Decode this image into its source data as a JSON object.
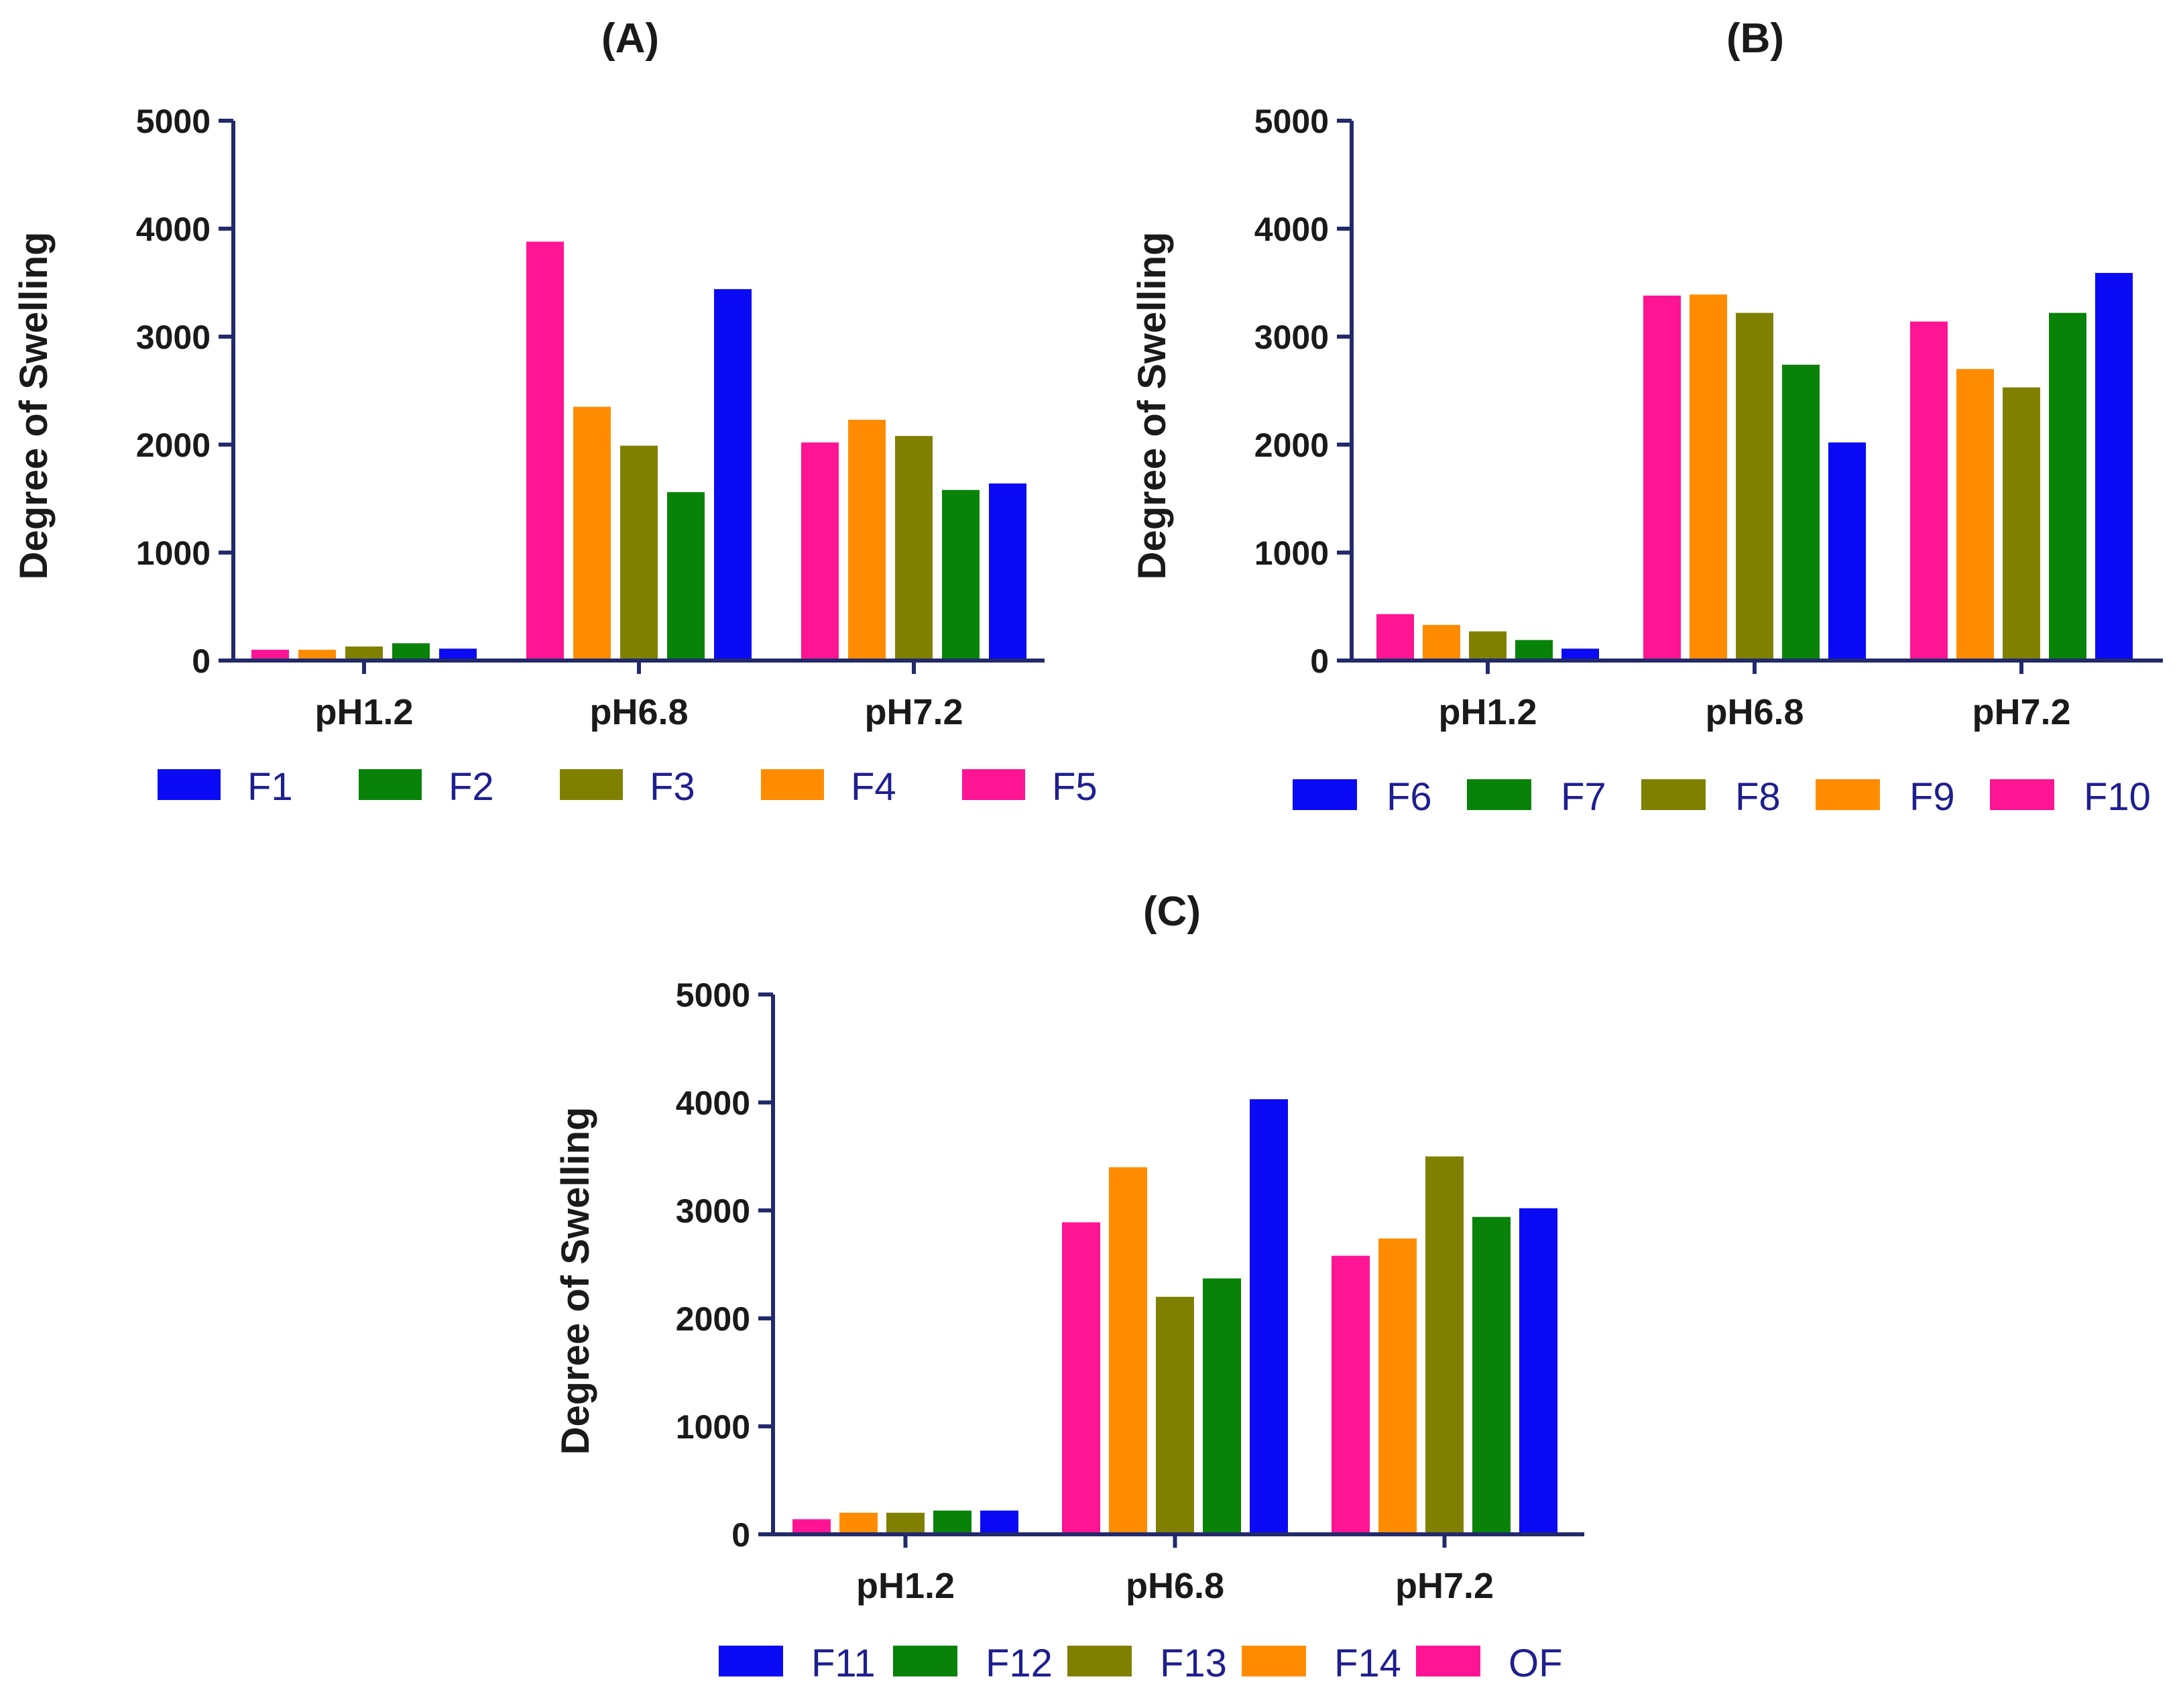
{
  "colors": {
    "axis": "#232a6b",
    "text": "#1a1a1a",
    "legend_text": "#1f1f8f"
  },
  "chart_data": [
    {
      "type": "bar",
      "title": "(A)",
      "ylabel": "Degree of Swelling",
      "xlabel": "",
      "ylim": [
        0,
        5000
      ],
      "yticks": [
        0,
        1000,
        2000,
        3000,
        4000,
        5000
      ],
      "categories": [
        "pH1.2",
        "pH6.8",
        "pH7.2"
      ],
      "series": [
        {
          "name": "F5",
          "color": "#ff1493",
          "values": [
            100,
            3880,
            2020
          ]
        },
        {
          "name": "F4",
          "color": "#ff8c00",
          "values": [
            100,
            2350,
            2230
          ]
        },
        {
          "name": "F3",
          "color": "#808000",
          "values": [
            130,
            1990,
            2080
          ]
        },
        {
          "name": "F2",
          "color": "#088208",
          "values": [
            160,
            1560,
            1580
          ]
        },
        {
          "name": "F1",
          "color": "#0a0af5",
          "values": [
            110,
            3440,
            1640
          ]
        }
      ],
      "legend": [
        "F1",
        "F2",
        "F3",
        "F4",
        "F5"
      ]
    },
    {
      "type": "bar",
      "title": "(B)",
      "ylabel": "Degree of Swelling",
      "xlabel": "",
      "ylim": [
        0,
        5000
      ],
      "yticks": [
        0,
        1000,
        2000,
        3000,
        4000,
        5000
      ],
      "categories": [
        "pH1.2",
        "pH6.8",
        "pH7.2"
      ],
      "series": [
        {
          "name": "F10",
          "color": "#ff1493",
          "values": [
            430,
            3380,
            3140
          ]
        },
        {
          "name": "F9",
          "color": "#ff8c00",
          "values": [
            330,
            3390,
            2700
          ]
        },
        {
          "name": "F8",
          "color": "#808000",
          "values": [
            270,
            3220,
            2530
          ]
        },
        {
          "name": "F7",
          "color": "#088208",
          "values": [
            190,
            2740,
            3220
          ]
        },
        {
          "name": "F6",
          "color": "#0a0af5",
          "values": [
            110,
            2020,
            3590
          ]
        }
      ],
      "legend": [
        "F6",
        "F7",
        "F8",
        "F9",
        "F10"
      ]
    },
    {
      "type": "bar",
      "title": "(C)",
      "ylabel": "Degree of Swelling",
      "xlabel": "",
      "ylim": [
        0,
        5000
      ],
      "yticks": [
        0,
        1000,
        2000,
        3000,
        4000,
        5000
      ],
      "categories": [
        "pH1.2",
        "pH6.8",
        "pH7.2"
      ],
      "series": [
        {
          "name": "OF",
          "color": "#ff1493",
          "values": [
            140,
            2890,
            2580
          ]
        },
        {
          "name": "F14",
          "color": "#ff8c00",
          "values": [
            200,
            3400,
            2740
          ]
        },
        {
          "name": "F13",
          "color": "#808000",
          "values": [
            200,
            2200,
            3500
          ]
        },
        {
          "name": "F12",
          "color": "#088208",
          "values": [
            220,
            2370,
            2940
          ]
        },
        {
          "name": "F11",
          "color": "#0a0af5",
          "values": [
            220,
            4030,
            3020
          ]
        }
      ],
      "legend": [
        "F11",
        "F12",
        "F13",
        "F14",
        "OF"
      ]
    }
  ]
}
